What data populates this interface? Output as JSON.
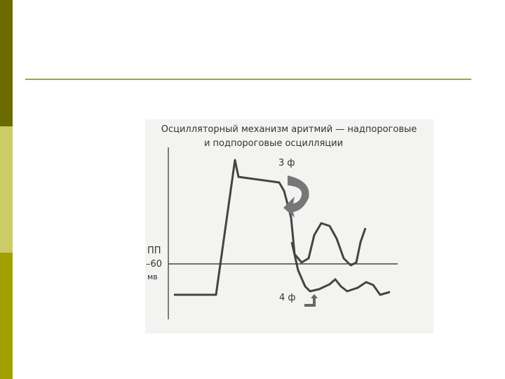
{
  "figure": {
    "title_lines": [
      "Осцилляторный механизм аритмий — надпороговые",
      "и подпороговые осцилляции"
    ],
    "phase3_label": "3 ф",
    "phase4_label": "4 ф",
    "axis_label_lines": [
      "ПП",
      "–60",
      "мв"
    ]
  }
}
